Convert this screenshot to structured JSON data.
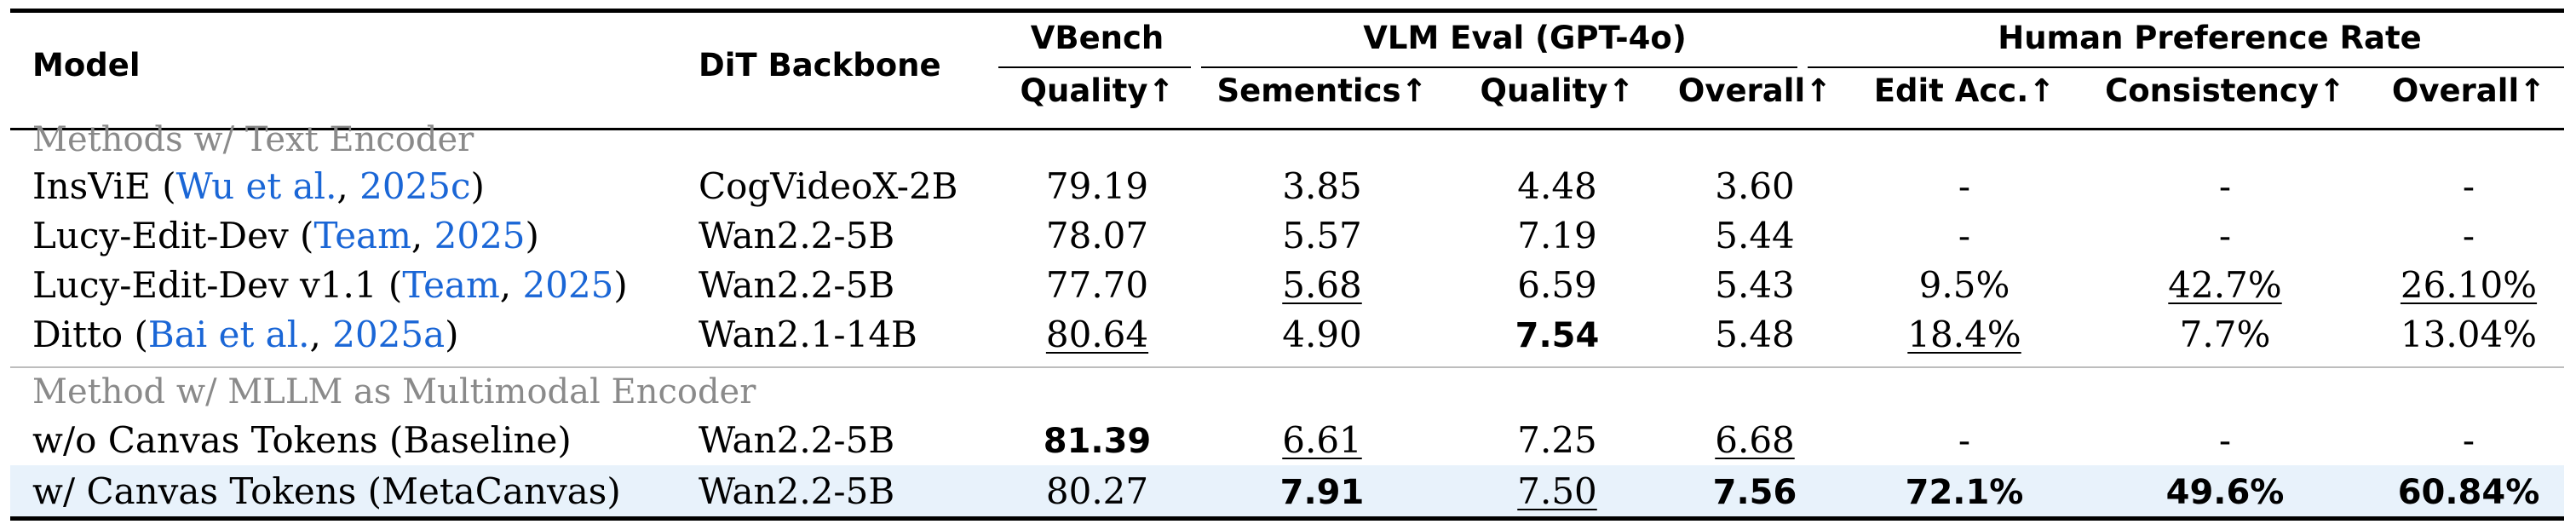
{
  "header": {
    "model": "Model",
    "backbone": "DiT Backbone",
    "vbench": "VBench",
    "vlm_eval": "VLM Eval (GPT-4o)",
    "human_pref": "Human Preference Rate",
    "vbench_quality": "Quality↑",
    "semantics": "Sementics↑",
    "vlm_quality": "Quality↑",
    "vlm_overall": "Overall↑",
    "edit_acc": "Edit Acc.↑",
    "consistency": "Consistency↑",
    "hp_overall": "Overall↑"
  },
  "groups": {
    "text_encoder": "Methods w/ Text Encoder",
    "mllm_encoder": "Method w/ MLLM as Multimodal Encoder"
  },
  "rows": [
    {
      "name": "InsViE",
      "cite_author": "Wu et al.",
      "cite_year": "2025c",
      "backbone": "CogVideoX-2B",
      "vbench_quality": "79.19",
      "semantics": "3.85",
      "vlm_quality": "4.48",
      "vlm_overall": "3.60",
      "edit_acc": "-",
      "consistency": "-",
      "hp_overall": "-"
    },
    {
      "name": "Lucy-Edit-Dev",
      "cite_author": "Team",
      "cite_year": "2025",
      "backbone": "Wan2.2-5B",
      "vbench_quality": "78.07",
      "semantics": "5.57",
      "vlm_quality": "7.19",
      "vlm_overall": "5.44",
      "edit_acc": "-",
      "consistency": "-",
      "hp_overall": "-"
    },
    {
      "name": "Lucy-Edit-Dev v1.1",
      "cite_author": "Team",
      "cite_year": "2025",
      "backbone": "Wan2.2-5B",
      "vbench_quality": "77.70",
      "semantics": "5.68",
      "vlm_quality": "6.59",
      "vlm_overall": "5.43",
      "edit_acc": "9.5%",
      "consistency": "42.7%",
      "hp_overall": "26.10%"
    },
    {
      "name": "Ditto",
      "cite_author": "Bai et al.",
      "cite_year": "2025a",
      "backbone": "Wan2.1-14B",
      "vbench_quality": "80.64",
      "semantics": "4.90",
      "vlm_quality": "7.54",
      "vlm_overall": "5.48",
      "edit_acc": "18.4%",
      "consistency": "7.7%",
      "hp_overall": "13.04%"
    },
    {
      "name": "w/o Canvas Tokens (Baseline)",
      "backbone": "Wan2.2-5B",
      "vbench_quality": "81.39",
      "semantics": "6.61",
      "vlm_quality": "7.25",
      "vlm_overall": "6.68",
      "edit_acc": "-",
      "consistency": "-",
      "hp_overall": "-"
    },
    {
      "name": "w/ Canvas Tokens (MetaCanvas)",
      "backbone": "Wan2.2-5B",
      "vbench_quality": "80.27",
      "semantics": "7.91",
      "vlm_quality": "7.50",
      "vlm_overall": "7.56",
      "edit_acc": "72.1%",
      "consistency": "49.6%",
      "hp_overall": "60.84%"
    }
  ],
  "colors": {
    "citation": "#1a66d6",
    "group_label": "#8a8a8a",
    "highlight_row": "#e8f2fb"
  }
}
